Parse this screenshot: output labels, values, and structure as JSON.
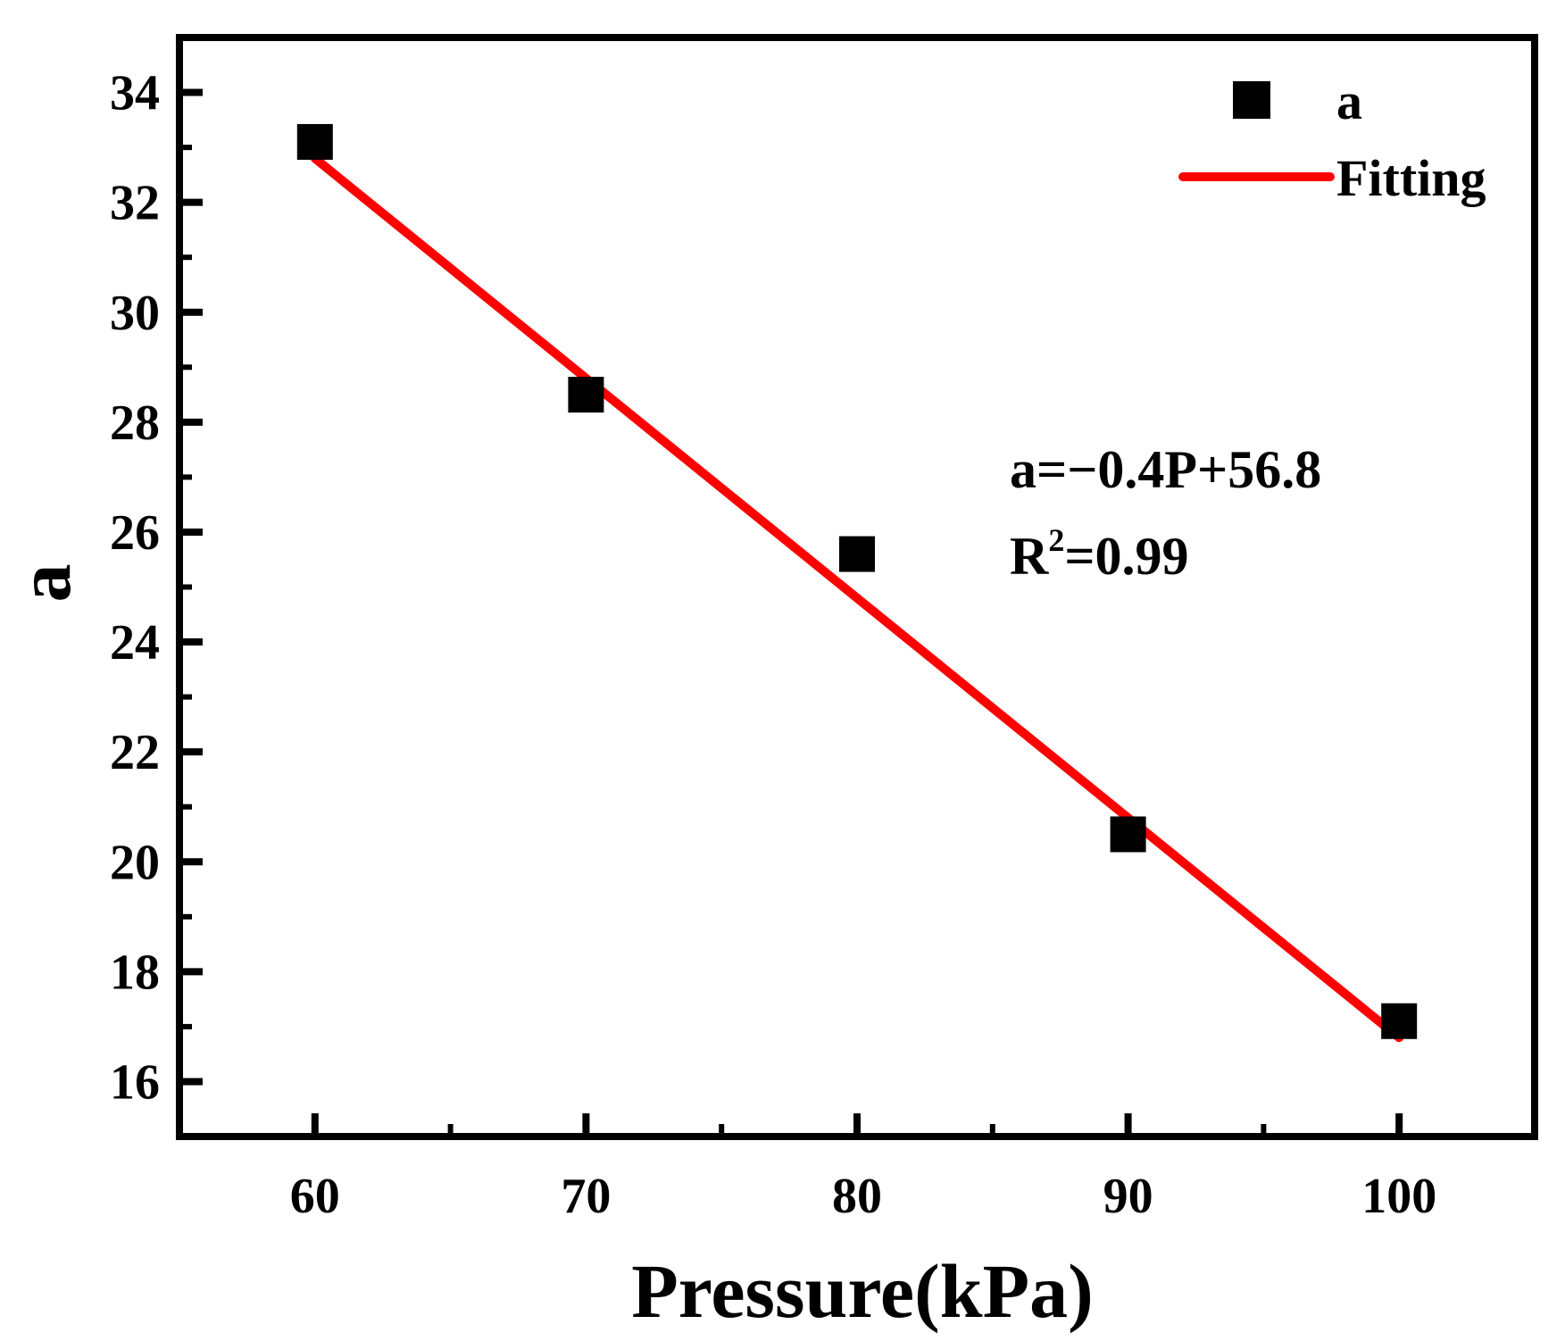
{
  "chart_data": {
    "type": "scatter",
    "title": "",
    "xlabel": "Pressure(kPa)",
    "ylabel": "a",
    "xlim": [
      55,
      105
    ],
    "ylim": [
      15,
      35
    ],
    "xticks": [
      60,
      70,
      80,
      90,
      100
    ],
    "xtick_labels": [
      "60",
      "70",
      "80",
      "90",
      "100"
    ],
    "yticks": [
      16,
      18,
      20,
      22,
      24,
      26,
      28,
      30,
      32,
      34
    ],
    "ytick_labels": [
      "16",
      "18",
      "20",
      "22",
      "24",
      "26",
      "28",
      "30",
      "32",
      "34"
    ],
    "grid": false,
    "legend_position": "top-right",
    "series": [
      {
        "name": "a",
        "kind": "scatter",
        "marker": "square",
        "color": "#000000",
        "x": [
          60,
          70,
          80,
          90,
          100
        ],
        "y": [
          33.1,
          28.5,
          25.6,
          20.5,
          17.1
        ]
      },
      {
        "name": "Fitting",
        "kind": "line",
        "color": "#ff0000",
        "x": [
          60,
          100
        ],
        "y": [
          32.8,
          16.8
        ]
      }
    ],
    "annotations": {
      "equation": "a=−0.4P+56.8",
      "r2_label": "R",
      "r2_sup": "2",
      "r2_value": "=0.99"
    }
  }
}
